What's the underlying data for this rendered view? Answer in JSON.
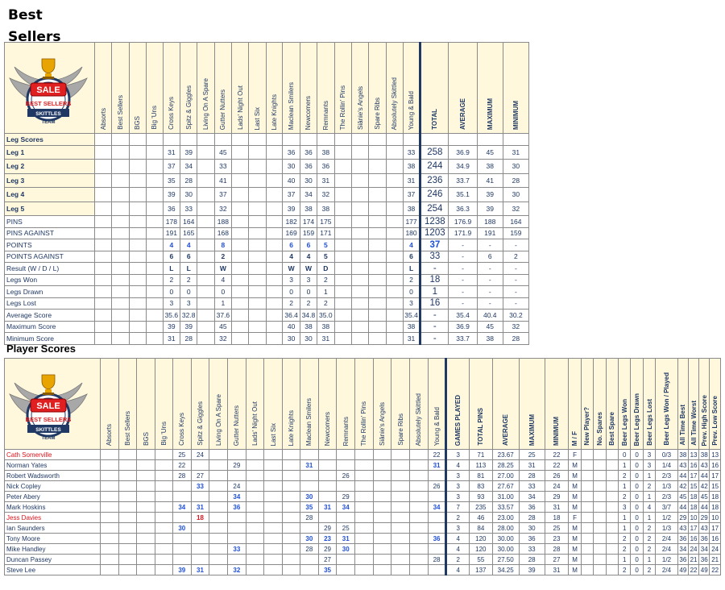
{
  "page_title_line1": "Best",
  "page_title_line2": "Sellers",
  "player_section_title": "Player Scores",
  "logo": {
    "badge": "SALE",
    "arc": "BEST SELLERS",
    "ribbon": "SKITTLES",
    "sub": "TEAM"
  },
  "teams": [
    "Absorts",
    "Best Sellers",
    "BGS",
    "Big 'Uns",
    "Cross Keys",
    "Spitz & Giggles",
    "Living On A Spare",
    "Gutter Nutters",
    "Lads' Night Out",
    "Last Six",
    "Late Knights",
    "Maclean Smilers",
    "Newcomers",
    "Remnants",
    "The Rollin' Pins",
    "Siânie's Angels",
    "Spare Ribs",
    "Absolutely Skittled",
    "Young & Bald"
  ],
  "leg_summary_headers": [
    "TOTAL",
    "AVERAGE",
    "MAXIMUM",
    "MINIMUM"
  ],
  "leg_section_label": "Leg Scores",
  "leg_rows": [
    {
      "label": "Leg 1",
      "cells": [
        "",
        "",
        "",
        "",
        "31",
        "39",
        "",
        "45",
        "",
        "",
        "",
        "36",
        "36",
        "38",
        "",
        "",
        "",
        "",
        "33"
      ],
      "summary": [
        "258",
        "36.9",
        "45",
        "31"
      ]
    },
    {
      "label": "Leg 2",
      "cells": [
        "",
        "",
        "",
        "",
        "37",
        "34",
        "",
        "33",
        "",
        "",
        "",
        "30",
        "36",
        "36",
        "",
        "",
        "",
        "",
        "38"
      ],
      "summary": [
        "244",
        "34.9",
        "38",
        "30"
      ]
    },
    {
      "label": "Leg 3",
      "cells": [
        "",
        "",
        "",
        "",
        "35",
        "28",
        "",
        "41",
        "",
        "",
        "",
        "40",
        "30",
        "31",
        "",
        "",
        "",
        "",
        "31"
      ],
      "summary": [
        "236",
        "33.7",
        "41",
        "28"
      ]
    },
    {
      "label": "Leg 4",
      "cells": [
        "",
        "",
        "",
        "",
        "39",
        "30",
        "",
        "37",
        "",
        "",
        "",
        "37",
        "34",
        "32",
        "",
        "",
        "",
        "",
        "37"
      ],
      "summary": [
        "246",
        "35.1",
        "39",
        "30"
      ]
    },
    {
      "label": "Leg 5",
      "cells": [
        "",
        "",
        "",
        "",
        "36",
        "33",
        "",
        "32",
        "",
        "",
        "",
        "39",
        "38",
        "38",
        "",
        "",
        "",
        "",
        "38"
      ],
      "summary": [
        "254",
        "36.3",
        "39",
        "32"
      ]
    }
  ],
  "stat_rows": [
    {
      "label": "PINS",
      "cells": [
        "",
        "",
        "",
        "",
        "178",
        "164",
        "",
        "188",
        "",
        "",
        "",
        "182",
        "174",
        "175",
        "",
        "",
        "",
        "",
        "177"
      ],
      "summary": [
        "1238",
        "176.9",
        "188",
        "164"
      ],
      "style": ""
    },
    {
      "label": "PINS AGAINST",
      "cells": [
        "",
        "",
        "",
        "",
        "191",
        "165",
        "",
        "168",
        "",
        "",
        "",
        "169",
        "159",
        "171",
        "",
        "",
        "",
        "",
        "180"
      ],
      "summary": [
        "1203",
        "171.9",
        "191",
        "159"
      ],
      "style": ""
    },
    {
      "label": "POINTS",
      "cells": [
        "",
        "",
        "",
        "",
        "4",
        "4",
        "",
        "8",
        "",
        "",
        "",
        "6",
        "6",
        "5",
        "",
        "",
        "",
        "",
        "4"
      ],
      "summary": [
        "37",
        "-",
        "-",
        "-"
      ],
      "style": "blue"
    },
    {
      "label": "POINTS AGAINST",
      "cells": [
        "",
        "",
        "",
        "",
        "6",
        "6",
        "",
        "2",
        "",
        "",
        "",
        "4",
        "4",
        "5",
        "",
        "",
        "",
        "",
        "6"
      ],
      "summary": [
        "33",
        "-",
        "6",
        "2"
      ],
      "style": "b"
    },
    {
      "label": "Result (W / D / L)",
      "cells": [
        "",
        "",
        "",
        "",
        "L",
        "L",
        "",
        "W",
        "",
        "",
        "",
        "W",
        "W",
        "D",
        "",
        "",
        "",
        "",
        "L"
      ],
      "summary": [
        "-",
        "-",
        "-",
        "-"
      ],
      "style": "b"
    },
    {
      "label": "Legs Won",
      "cells": [
        "",
        "",
        "",
        "",
        "2",
        "2",
        "",
        "4",
        "",
        "",
        "",
        "3",
        "3",
        "2",
        "",
        "",
        "",
        "",
        "2"
      ],
      "summary": [
        "18",
        "-",
        "-",
        "-"
      ],
      "style": ""
    },
    {
      "label": "Legs Drawn",
      "cells": [
        "",
        "",
        "",
        "",
        "0",
        "0",
        "",
        "0",
        "",
        "",
        "",
        "0",
        "0",
        "1",
        "",
        "",
        "",
        "",
        "0"
      ],
      "summary": [
        "1",
        "-",
        "-",
        "-"
      ],
      "style": ""
    },
    {
      "label": "Legs Lost",
      "cells": [
        "",
        "",
        "",
        "",
        "3",
        "3",
        "",
        "1",
        "",
        "",
        "",
        "2",
        "2",
        "2",
        "",
        "",
        "",
        "",
        "3"
      ],
      "summary": [
        "16",
        "-",
        "-",
        "-"
      ],
      "style": ""
    },
    {
      "label": "Average Score",
      "cells": [
        "",
        "",
        "",
        "",
        "35.6",
        "32.8",
        "",
        "37.6",
        "",
        "",
        "",
        "36.4",
        "34.8",
        "35.0",
        "",
        "",
        "",
        "",
        "35.4"
      ],
      "summary": [
        "-",
        "35.4",
        "40.4",
        "30.2"
      ],
      "style": ""
    },
    {
      "label": "Maximum Score",
      "cells": [
        "",
        "",
        "",
        "",
        "39",
        "39",
        "",
        "45",
        "",
        "",
        "",
        "40",
        "38",
        "38",
        "",
        "",
        "",
        "",
        "38"
      ],
      "summary": [
        "-",
        "36.9",
        "45",
        "32"
      ],
      "style": ""
    },
    {
      "label": "Minimum Score",
      "cells": [
        "",
        "",
        "",
        "",
        "31",
        "28",
        "",
        "32",
        "",
        "",
        "",
        "30",
        "30",
        "31",
        "",
        "",
        "",
        "",
        "31"
      ],
      "summary": [
        "-",
        "33.7",
        "38",
        "28"
      ],
      "style": ""
    }
  ],
  "player_headers": [
    "GAMES PLAYED",
    "TOTAL PINS",
    "AVERAGE",
    "MAXIMUM",
    "MINIMUM",
    "M / F",
    "New Player?",
    "No. Spares",
    "Best Spare",
    "Beer Legs Won",
    "Beer Legs Drawn",
    "Beer Legs Lost",
    "Beer Legs Won / Played",
    "All Time Best",
    "All Time Worst",
    "Prev. High Score",
    "Prev. Low Score"
  ],
  "players": [
    {
      "name": "Cath Somerville",
      "red": true,
      "cells": [
        "",
        "",
        "",
        "",
        "25",
        "24",
        "",
        "",
        "",
        "",
        "",
        "",
        "",
        "",
        "",
        "",
        "",
        "",
        "22"
      ],
      "blue": [],
      "stats": [
        "3",
        "71",
        "23.67",
        "25",
        "22",
        "F",
        "",
        "",
        "",
        "0",
        "0",
        "3",
        "0/3",
        "38",
        "13",
        "38",
        "13"
      ]
    },
    {
      "name": "Norman Yates",
      "red": false,
      "cells": [
        "",
        "",
        "",
        "",
        "22",
        "",
        "",
        "29",
        "",
        "",
        "",
        "31",
        "",
        "",
        "",
        "",
        "",
        "",
        "31"
      ],
      "blue": [
        11,
        18
      ],
      "stats": [
        "4",
        "113",
        "28.25",
        "31",
        "22",
        "M",
        "",
        "",
        "",
        "1",
        "0",
        "3",
        "1/4",
        "43",
        "16",
        "43",
        "16"
      ]
    },
    {
      "name": "Robert Wadsworth",
      "red": false,
      "cells": [
        "",
        "",
        "",
        "",
        "28",
        "27",
        "",
        "",
        "",
        "",
        "",
        "",
        "",
        "26",
        "",
        "",
        "",
        "",
        ""
      ],
      "blue": [],
      "stats": [
        "3",
        "81",
        "27.00",
        "28",
        "26",
        "M",
        "",
        "",
        "",
        "2",
        "0",
        "1",
        "2/3",
        "44",
        "17",
        "44",
        "17"
      ]
    },
    {
      "name": "Nick Copley",
      "red": false,
      "cells": [
        "",
        "",
        "",
        "",
        "",
        "33",
        "",
        "24",
        "",
        "",
        "",
        "",
        "",
        "",
        "",
        "",
        "",
        "",
        "26"
      ],
      "blue": [
        5
      ],
      "stats": [
        "3",
        "83",
        "27.67",
        "33",
        "24",
        "M",
        "",
        "",
        "",
        "1",
        "0",
        "2",
        "1/3",
        "42",
        "15",
        "42",
        "15"
      ]
    },
    {
      "name": "Peter Abery",
      "red": false,
      "cells": [
        "",
        "",
        "",
        "",
        "",
        "",
        "",
        "34",
        "",
        "",
        "",
        "30",
        "",
        "29",
        "",
        "",
        "",
        "",
        ""
      ],
      "blue": [
        7,
        11
      ],
      "stats": [
        "3",
        "93",
        "31.00",
        "34",
        "29",
        "M",
        "",
        "",
        "",
        "2",
        "0",
        "1",
        "2/3",
        "45",
        "18",
        "45",
        "18"
      ]
    },
    {
      "name": "Mark Hoskins",
      "red": false,
      "cells": [
        "",
        "",
        "",
        "",
        "34",
        "31",
        "",
        "36",
        "",
        "",
        "",
        "35",
        "31",
        "34",
        "",
        "",
        "",
        "",
        "34"
      ],
      "blue": [
        4,
        5,
        7,
        11,
        12,
        13,
        18
      ],
      "stats": [
        "7",
        "235",
        "33.57",
        "36",
        "31",
        "M",
        "",
        "",
        "",
        "3",
        "0",
        "4",
        "3/7",
        "44",
        "18",
        "44",
        "18"
      ]
    },
    {
      "name": "Jess Davies",
      "red": true,
      "cells": [
        "",
        "",
        "",
        "",
        "",
        "18",
        "",
        "",
        "",
        "",
        "",
        "28",
        "",
        "",
        "",
        "",
        "",
        "",
        ""
      ],
      "blue": [],
      "redcells": [
        5
      ],
      "stats": [
        "2",
        "46",
        "23.00",
        "28",
        "18",
        "F",
        "",
        "",
        "",
        "1",
        "0",
        "1",
        "1/2",
        "29",
        "10",
        "29",
        "10"
      ]
    },
    {
      "name": "Ian Saunders",
      "red": false,
      "cells": [
        "",
        "",
        "",
        "",
        "30",
        "",
        "",
        "",
        "",
        "",
        "",
        "",
        "29",
        "25",
        "",
        "",
        "",
        "",
        ""
      ],
      "blue": [
        4
      ],
      "stats": [
        "3",
        "84",
        "28.00",
        "30",
        "25",
        "M",
        "",
        "",
        "",
        "1",
        "0",
        "2",
        "1/3",
        "43",
        "17",
        "43",
        "17"
      ]
    },
    {
      "name": "Tony Moore",
      "red": false,
      "cells": [
        "",
        "",
        "",
        "",
        "",
        "",
        "",
        "",
        "",
        "",
        "",
        "30",
        "23",
        "31",
        "",
        "",
        "",
        "",
        "36"
      ],
      "blue": [
        11,
        12,
        13,
        18
      ],
      "stats": [
        "4",
        "120",
        "30.00",
        "36",
        "23",
        "M",
        "",
        "",
        "",
        "2",
        "0",
        "2",
        "2/4",
        "36",
        "16",
        "36",
        "16"
      ]
    },
    {
      "name": "Mike Handley",
      "red": false,
      "cells": [
        "",
        "",
        "",
        "",
        "",
        "",
        "",
        "33",
        "",
        "",
        "",
        "28",
        "29",
        "30",
        "",
        "",
        "",
        "",
        ""
      ],
      "blue": [
        7,
        13
      ],
      "stats": [
        "4",
        "120",
        "30.00",
        "33",
        "28",
        "M",
        "",
        "",
        "",
        "2",
        "0",
        "2",
        "2/4",
        "34",
        "24",
        "34",
        "24"
      ]
    },
    {
      "name": "Duncan Passey",
      "red": false,
      "cells": [
        "",
        "",
        "",
        "",
        "",
        "",
        "",
        "",
        "",
        "",
        "",
        "",
        "27",
        "",
        "",
        "",
        "",
        "",
        "28"
      ],
      "blue": [],
      "stats": [
        "2",
        "55",
        "27.50",
        "28",
        "27",
        "M",
        "",
        "",
        "",
        "1",
        "0",
        "1",
        "1/2",
        "36",
        "21",
        "36",
        "21"
      ]
    },
    {
      "name": "Steve Lee",
      "red": false,
      "cells": [
        "",
        "",
        "",
        "",
        "39",
        "31",
        "",
        "32",
        "",
        "",
        "",
        "",
        "35",
        "",
        "",
        "",
        "",
        "",
        ""
      ],
      "blue": [
        4,
        5,
        7,
        12
      ],
      "stats": [
        "4",
        "137",
        "34.25",
        "39",
        "31",
        "M",
        "",
        "",
        "",
        "2",
        "0",
        "2",
        "2/4",
        "49",
        "22",
        "49",
        "22"
      ]
    }
  ]
}
